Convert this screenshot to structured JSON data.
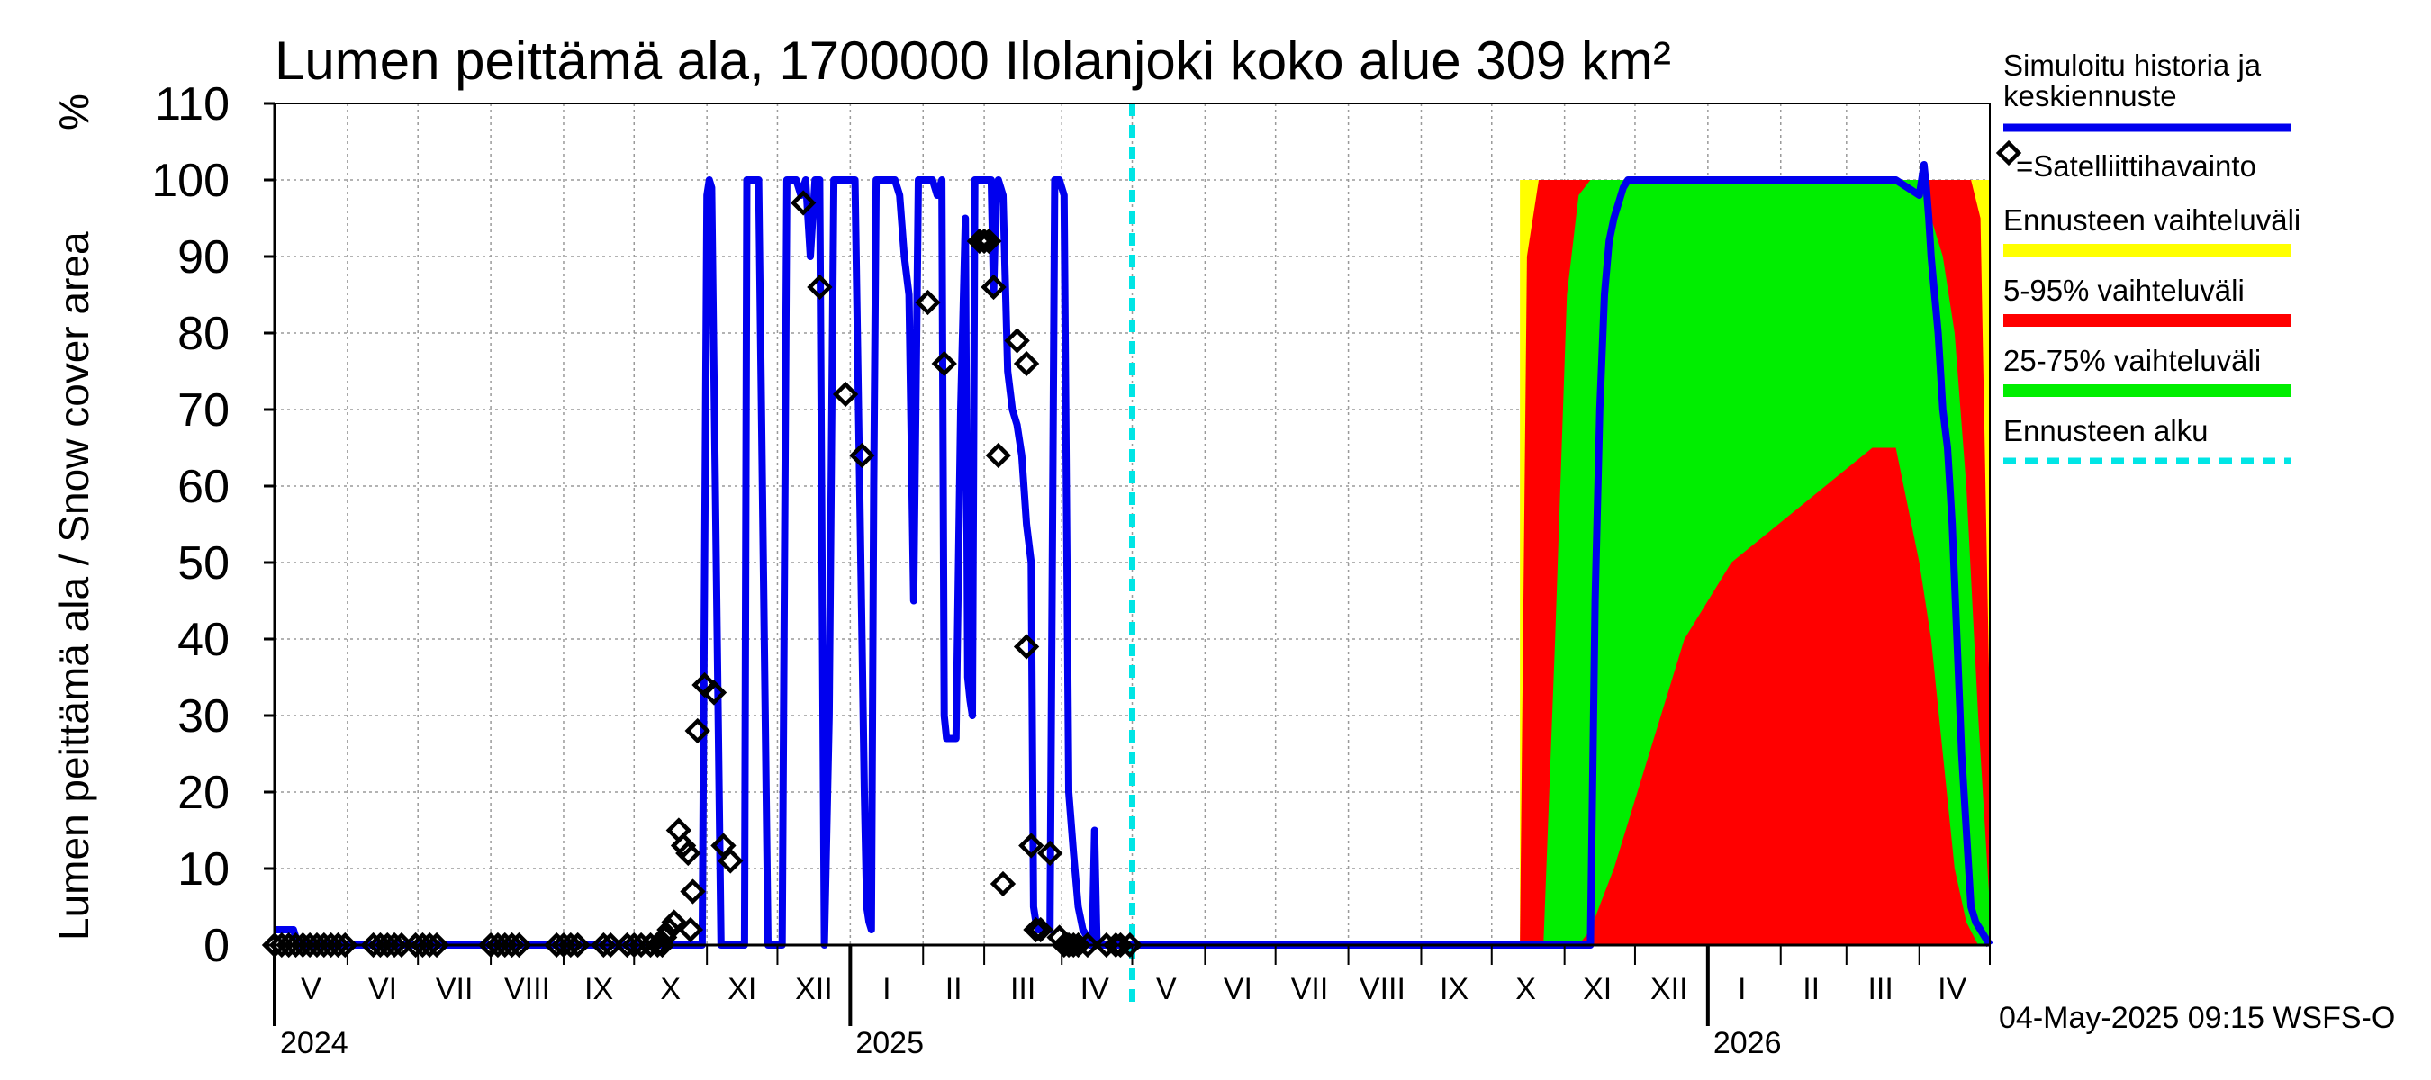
{
  "chart_data": {
    "type": "area",
    "title": "Lumen peittämä ala, 1700000 Ilolanjoki koko alue 309 km²",
    "ylabel": "Lumen peittämä ala / Snow cover area",
    "yunit": "%",
    "ylim": [
      0,
      110
    ],
    "yticks": [
      0,
      10,
      20,
      30,
      40,
      50,
      60,
      70,
      80,
      90,
      100,
      110
    ],
    "xlim": [
      0,
      730
    ],
    "grid": true,
    "months": [
      {
        "label": "V",
        "x": 15.5
      },
      {
        "label": "VI",
        "x": 46
      },
      {
        "label": "VII",
        "x": 76.5
      },
      {
        "label": "VIII",
        "x": 107.5
      },
      {
        "label": "IX",
        "x": 138
      },
      {
        "label": "X",
        "x": 168.5
      },
      {
        "label": "XI",
        "x": 199
      },
      {
        "label": "XII",
        "x": 229.5
      },
      {
        "label": "I",
        "x": 260.5
      },
      {
        "label": "II",
        "x": 289
      },
      {
        "label": "III",
        "x": 318.5
      },
      {
        "label": "IV",
        "x": 349
      },
      {
        "label": "V",
        "x": 379.5
      },
      {
        "label": "VI",
        "x": 410
      },
      {
        "label": "VII",
        "x": 440.5
      },
      {
        "label": "VIII",
        "x": 471.5
      },
      {
        "label": "IX",
        "x": 502
      },
      {
        "label": "X",
        "x": 532.5
      },
      {
        "label": "XI",
        "x": 563
      },
      {
        "label": "XII",
        "x": 593.5
      },
      {
        "label": "I",
        "x": 624.5
      },
      {
        "label": "II",
        "x": 654
      },
      {
        "label": "III",
        "x": 683.5
      },
      {
        "label": "IV",
        "x": 714
      }
    ],
    "month_boundaries": [
      0,
      31,
      61,
      92,
      123,
      153,
      184,
      214,
      245,
      276,
      302,
      335,
      365,
      396,
      426,
      457,
      488,
      518,
      549,
      579,
      610,
      641,
      669,
      700,
      730
    ],
    "years": [
      {
        "label": "2024",
        "x": 0
      },
      {
        "label": "2025",
        "x": 245
      },
      {
        "label": "2026",
        "x": 610
      }
    ],
    "forecast_start": 365,
    "series": [
      {
        "name": "Simuloitu historia ja keskiennuste",
        "color": "#0000ee",
        "x": [
          0,
          2,
          5,
          8,
          10,
          20,
          60,
          100,
          150,
          178,
          180,
          182,
          184,
          185,
          186,
          190,
          195,
          198,
          200,
          201,
          202,
          206,
          210,
          212,
          214,
          216,
          218,
          220,
          222,
          224,
          226,
          228,
          230,
          232,
          234,
          236,
          238,
          240,
          242,
          243,
          245,
          247,
          250,
          251,
          252,
          253,
          254,
          255,
          256,
          258,
          260,
          262,
          264,
          266,
          268,
          270,
          272,
          274,
          276,
          278,
          280,
          282,
          284,
          285,
          286,
          288,
          290,
          292,
          294,
          295,
          296,
          297,
          298,
          300,
          302,
          304,
          305,
          306,
          307,
          308,
          310,
          312,
          314,
          316,
          318,
          320,
          322,
          323,
          324,
          325,
          326,
          328,
          330,
          332,
          334,
          336,
          338,
          340,
          342,
          344,
          346,
          347,
          348,
          349,
          350,
          352,
          356,
          360,
          365,
          400,
          500,
          540,
          555,
          558,
          560,
          562,
          564,
          566,
          568,
          570,
          572,
          574,
          576,
          578,
          580,
          582,
          585,
          590,
          600,
          620,
          660,
          680,
          690,
          695,
          700,
          702,
          703,
          704,
          705,
          708,
          710,
          712,
          714,
          716,
          718,
          720,
          722,
          724,
          726,
          728,
          730
        ],
        "y": [
          2,
          2,
          2,
          2,
          0,
          0,
          0,
          0,
          0,
          0,
          0,
          0,
          98,
          100,
          99,
          0,
          0,
          0,
          0,
          100,
          100,
          100,
          0,
          0,
          0,
          0,
          100,
          100,
          100,
          98,
          100,
          90,
          100,
          100,
          0,
          30,
          100,
          100,
          100,
          100,
          100,
          100,
          40,
          20,
          5,
          3,
          2,
          60,
          100,
          100,
          100,
          100,
          100,
          98,
          90,
          85,
          45,
          100,
          100,
          100,
          100,
          98,
          100,
          30,
          27,
          27,
          27,
          70,
          95,
          35,
          32,
          30,
          100,
          100,
          100,
          100,
          100,
          85,
          97,
          100,
          98,
          75,
          70,
          68,
          64,
          55,
          50,
          5,
          3,
          2,
          2,
          2,
          2,
          100,
          100,
          98,
          20,
          12,
          5,
          2,
          1,
          0,
          0,
          15,
          0,
          0,
          0,
          0,
          0,
          0,
          0,
          0,
          0,
          0,
          0,
          45,
          70,
          85,
          92,
          95,
          97,
          99,
          100,
          100,
          100,
          100,
          100,
          100,
          100,
          100,
          100,
          100,
          100,
          99,
          98,
          102,
          99,
          95,
          90,
          80,
          70,
          65,
          55,
          40,
          25,
          15,
          5,
          3,
          2,
          1,
          0
        ]
      },
      {
        "name": "Ennusteen vaihteluväli",
        "color": "#ffff00",
        "x": [
          530,
          533,
          538,
          545,
          560,
          600,
          640,
          680,
          700,
          712,
          718,
          722,
          726,
          730
        ],
        "upper": [
          100,
          100,
          100,
          100,
          100,
          100,
          100,
          100,
          100,
          100,
          100,
          100,
          100,
          100
        ],
        "lower": [
          0,
          0,
          0,
          0,
          0,
          0,
          0,
          0,
          0,
          0,
          0,
          0,
          0,
          0
        ]
      },
      {
        "name": "5-95% vaihteluväli",
        "color": "#ff0000",
        "x": [
          530,
          533,
          538,
          545,
          560,
          600,
          640,
          680,
          700,
          712,
          718,
          722,
          726,
          730
        ],
        "upper": [
          0,
          90,
          100,
          100,
          100,
          100,
          100,
          100,
          100,
          100,
          100,
          100,
          95,
          30
        ],
        "lower": [
          0,
          0,
          0,
          0,
          0,
          0,
          0,
          0,
          0,
          0,
          0,
          0,
          0,
          0
        ]
      },
      {
        "name": "25-75% vaihteluväli",
        "color": "#00ee00",
        "x": [
          540,
          545,
          550,
          555,
          560,
          570,
          580,
          590,
          600,
          620,
          640,
          660,
          680,
          690,
          700,
          705,
          710,
          715,
          720,
          725,
          730
        ],
        "upper": [
          0,
          40,
          85,
          98,
          100,
          100,
          100,
          100,
          100,
          100,
          100,
          100,
          100,
          100,
          100,
          95,
          90,
          80,
          60,
          30,
          5
        ],
        "lower": [
          0,
          0,
          0,
          0,
          2,
          10,
          20,
          30,
          40,
          50,
          55,
          60,
          65,
          65,
          50,
          40,
          25,
          10,
          3,
          0,
          0
        ]
      }
    ],
    "observations": {
      "name": "=Satelliittihavainto",
      "x": [
        0,
        3,
        6,
        9,
        12,
        15,
        18,
        21,
        24,
        27,
        30,
        42,
        45,
        48,
        51,
        54,
        60,
        63,
        66,
        69,
        92,
        95,
        98,
        101,
        104,
        120,
        123,
        126,
        129,
        140,
        143,
        150,
        153,
        156,
        160,
        163,
        165,
        166,
        168,
        170,
        172,
        174,
        176,
        177,
        178,
        180,
        183,
        187,
        191,
        194,
        225,
        232,
        243,
        250,
        278,
        285,
        300,
        302,
        304,
        306,
        308,
        310,
        316,
        320,
        320,
        322,
        324,
        326,
        330,
        334,
        336,
        338,
        340,
        342,
        346,
        354,
        358,
        360,
        364
      ],
      "y": [
        0,
        0,
        0,
        0,
        0,
        0,
        0,
        0,
        0,
        0,
        0,
        0,
        0,
        0,
        0,
        0,
        0,
        0,
        0,
        0,
        0,
        0,
        0,
        0,
        0,
        0,
        0,
        0,
        0,
        0,
        0,
        0,
        0,
        0,
        0,
        0,
        0,
        1,
        2,
        3,
        15,
        13,
        12,
        2,
        7,
        28,
        34,
        33,
        13,
        11,
        97,
        86,
        72,
        64,
        84,
        76,
        92,
        92,
        92,
        86,
        64,
        8,
        79,
        76,
        39,
        13,
        2,
        2,
        12,
        1,
        0,
        0,
        0,
        0,
        0,
        0,
        0,
        0,
        0
      ]
    },
    "legend": [
      {
        "label": "Simuloitu historia ja",
        "label2": "keskiennuste",
        "color": "#0000ee"
      },
      {
        "label": "=Satelliittihavainto",
        "color": "#000000"
      },
      {
        "label": "Ennusteen vaihteluväli",
        "color": "#ffff00"
      },
      {
        "label": "5-95% vaihteluväli",
        "color": "#ff0000"
      },
      {
        "label": "25-75% vaihteluväli",
        "color": "#00ee00"
      },
      {
        "label": "Ennusteen alku",
        "color": "#00e5e5"
      }
    ],
    "footer": "04-May-2025 09:15 WSFS-O"
  }
}
